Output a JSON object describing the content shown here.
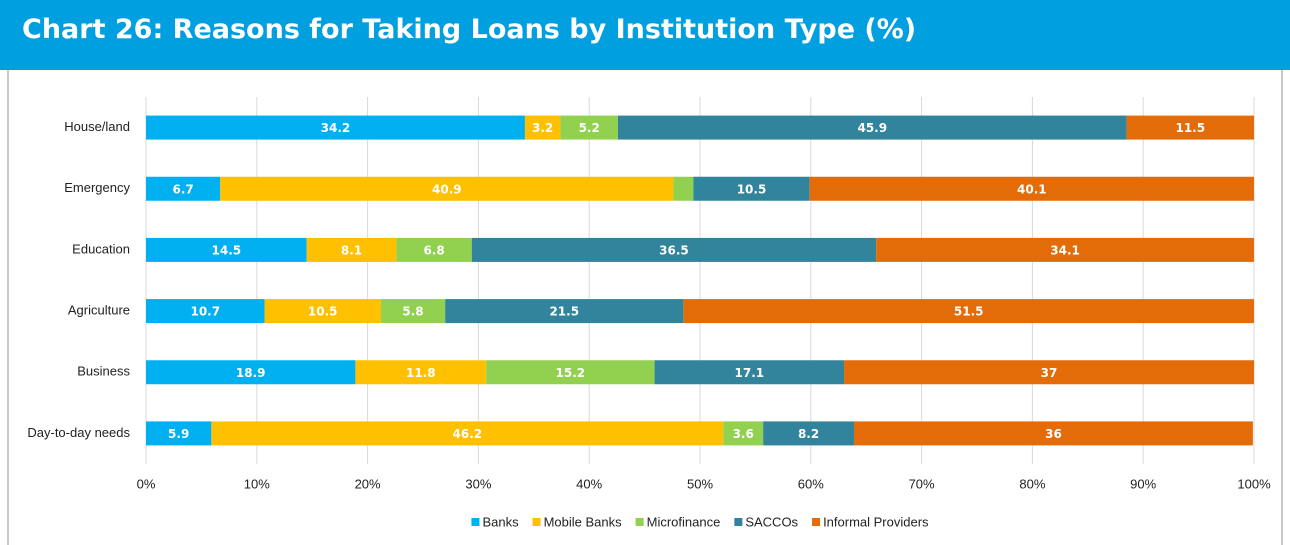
{
  "chart_data": {
    "type": "stacked_bar_100_horizontal",
    "title": "Chart 26: Reasons for Taking Loans by Institution Type (%)",
    "categories": [
      "House/land",
      "Emergency",
      "Education",
      "Agriculture",
      "Business",
      "Day-to-day needs"
    ],
    "series": [
      {
        "name": "Banks",
        "color": "#00b0f0",
        "values": [
          34.2,
          6.7,
          14.5,
          10.7,
          18.9,
          5.9
        ]
      },
      {
        "name": "Mobile Banks",
        "color": "#ffc000",
        "values": [
          3.2,
          40.9,
          8.1,
          10.5,
          11.8,
          46.2
        ]
      },
      {
        "name": "Microfinance",
        "color": "#92d050",
        "values": [
          5.2,
          1.8,
          6.8,
          5.8,
          15.2,
          3.6
        ]
      },
      {
        "name": "SACCOs",
        "color": "#31849b",
        "values": [
          45.9,
          10.5,
          36.5,
          21.5,
          17.1,
          8.2
        ]
      },
      {
        "name": "Informal Providers",
        "color": "#e36c09",
        "values": [
          11.5,
          40.1,
          34.1,
          51.5,
          37,
          36
        ]
      }
    ],
    "xlim": [
      0,
      100
    ],
    "xticks": [
      {
        "value": 0,
        "label": "0%"
      },
      {
        "value": 10,
        "label": "10%"
      },
      {
        "value": 20,
        "label": "20%"
      },
      {
        "value": 30,
        "label": "30%"
      },
      {
        "value": 40,
        "label": "40%"
      },
      {
        "value": 50,
        "label": "50%"
      },
      {
        "value": 60,
        "label": "60%"
      },
      {
        "value": 70,
        "label": "70%"
      },
      {
        "value": 80,
        "label": "80%"
      },
      {
        "value": 90,
        "label": "90%"
      },
      {
        "value": 100,
        "label": "100%"
      }
    ],
    "grid": true,
    "legend": "bottom"
  }
}
